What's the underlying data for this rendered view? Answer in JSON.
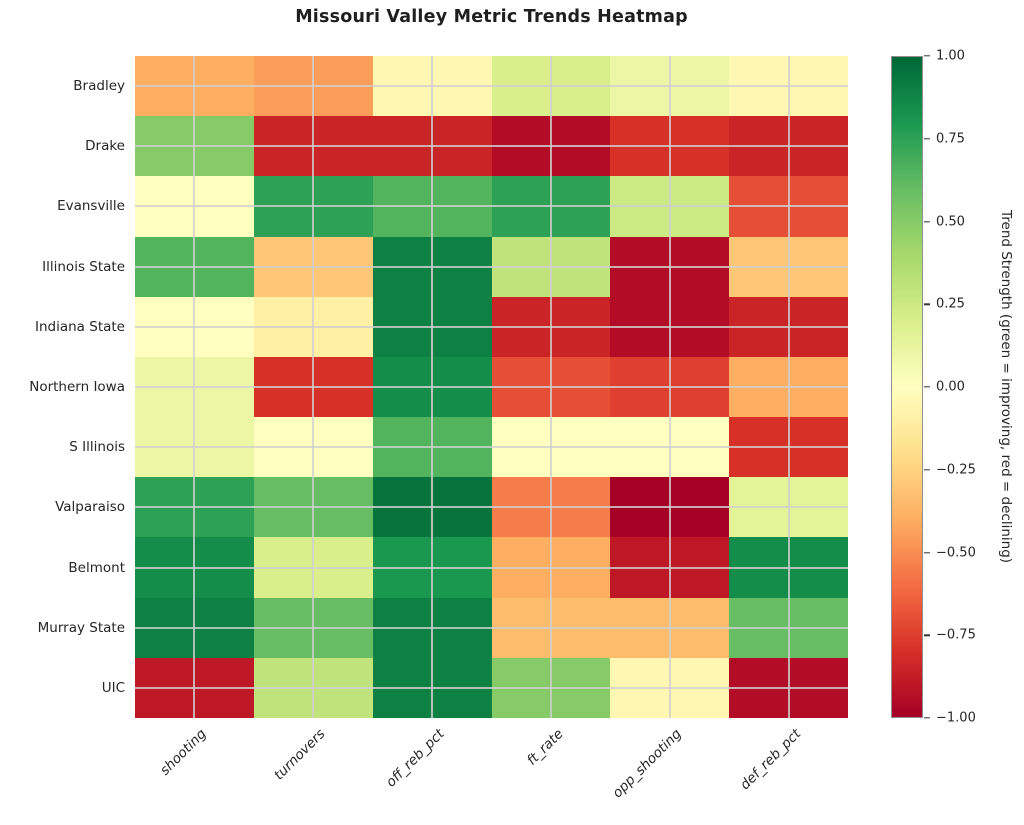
{
  "title": "Missouri Valley Metric Trends Heatmap",
  "chart_data": {
    "type": "heatmap",
    "title": "Missouri Valley Metric Trends Heatmap",
    "rows": [
      "Bradley",
      "Drake",
      "Evansville",
      "Illinois State",
      "Indiana State",
      "Northern Iowa",
      "S Illinois",
      "Valparaiso",
      "Belmont",
      "Murray State",
      "UIC"
    ],
    "columns": [
      "shooting",
      "turnovers",
      "off_reb_pct",
      "ft_rate",
      "opp_shooting",
      "def_reb_pct"
    ],
    "values": [
      [
        -0.4,
        -0.45,
        -0.05,
        0.2,
        0.1,
        -0.05
      ],
      [
        0.5,
        -0.85,
        -0.85,
        -0.95,
        -0.8,
        -0.85
      ],
      [
        0.0,
        0.75,
        0.65,
        0.75,
        0.25,
        -0.7
      ],
      [
        0.65,
        -0.3,
        0.9,
        0.3,
        -0.95,
        -0.3
      ],
      [
        0.0,
        -0.1,
        0.9,
        -0.85,
        -0.95,
        -0.85
      ],
      [
        0.1,
        -0.8,
        0.85,
        -0.7,
        -0.75,
        -0.4
      ],
      [
        0.1,
        0.0,
        0.65,
        0.0,
        0.0,
        -0.8
      ],
      [
        0.75,
        0.6,
        0.95,
        -0.55,
        -1.0,
        0.15
      ],
      [
        0.85,
        0.2,
        0.8,
        -0.4,
        -0.9,
        0.85
      ],
      [
        0.9,
        0.6,
        0.9,
        -0.35,
        -0.35,
        0.6
      ],
      [
        -0.9,
        0.3,
        0.9,
        0.5,
        -0.05,
        -0.95
      ]
    ],
    "vmin": -1.0,
    "vmax": 1.0,
    "colormap": "RdYlGn",
    "grid": true,
    "colorbar": {
      "label": "Trend Strength (green = improving, red = declining)",
      "ticks": [
        1.0,
        0.75,
        0.5,
        0.25,
        0.0,
        -0.25,
        -0.5,
        -0.75,
        -1.0
      ],
      "tick_labels": [
        "1.00",
        "0.75",
        "0.50",
        "0.25",
        "0.00",
        "−0.25",
        "−0.50",
        "−0.75",
        "−1.00"
      ]
    },
    "colors": {
      "min_color": "#a50026",
      "mid_color": "#ffffbf",
      "max_color": "#006837",
      "gridline_color": "#cfcfcf",
      "text_color": "#262626"
    }
  }
}
